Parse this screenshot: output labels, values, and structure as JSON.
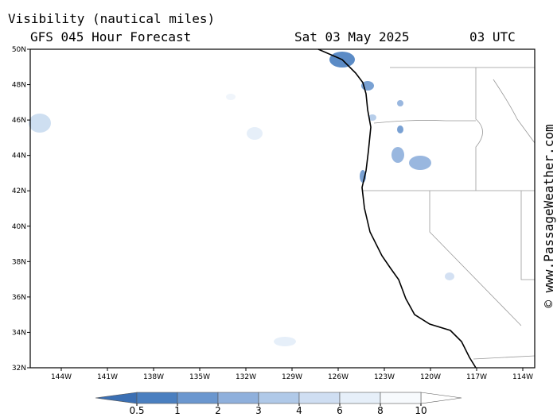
{
  "title": "Visibility (nautical miles)",
  "subtitle": "GFS 045 Hour Forecast",
  "valid_date": "Sat 03 May 2025",
  "valid_time": "03 UTC",
  "credit": "© www.PassageWeather.com",
  "lat_labels": [
    "50N",
    "48N",
    "46N",
    "44N",
    "42N",
    "40N",
    "38N",
    "36N",
    "34N",
    "32N"
  ],
  "lon_labels": [
    "144W",
    "141W",
    "138W",
    "135W",
    "132W",
    "129W",
    "126W",
    "123W",
    "120W",
    "117W",
    "114W"
  ],
  "colorbar": {
    "levels": [
      0.5,
      1,
      2,
      3,
      4,
      6,
      8,
      10
    ],
    "under_color": "#3b6fb3",
    "colors": [
      "#4a7fc0",
      "#6b97cf",
      "#8fb0dc",
      "#b0c9e8",
      "#cfdef2",
      "#e6eff9",
      "#f7fafd"
    ],
    "over_color": "#ffffff"
  }
}
